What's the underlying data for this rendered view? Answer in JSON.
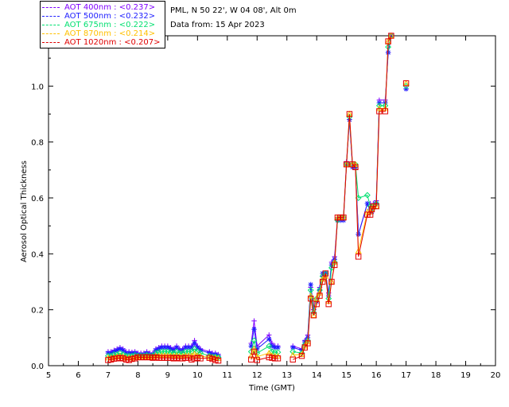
{
  "header": {
    "site": "PML, N 50 22', W 04 08', Alt 0m",
    "date": "Data from: 15 Apr 2023"
  },
  "legend": [
    {
      "label": "AOT  400nm : <0.237>",
      "color": "#7f00ff"
    },
    {
      "label": "AOT  500nm : <0.232>",
      "color": "#2020ff"
    },
    {
      "label": "AOT  675nm : <0.222>",
      "color": "#00e070"
    },
    {
      "label": "AOT  870nm : <0.214>",
      "color": "#ffc000"
    },
    {
      "label": "AOT 1020nm : <0.207>",
      "color": "#e00000"
    }
  ],
  "chart_data": {
    "type": "line",
    "title": "",
    "xlabel": "Time (GMT)",
    "ylabel": "Aerosol Optical Thickness",
    "xlim": [
      5,
      20
    ],
    "ylim": [
      0,
      1.18
    ],
    "xticks": [
      "5",
      "6",
      "7",
      "8",
      "9",
      "10",
      "11",
      "12",
      "13",
      "14",
      "15",
      "16",
      "17",
      "18",
      "19",
      "20"
    ],
    "yticks": [
      "0.0",
      "0.2",
      "0.4",
      "0.6",
      "0.8",
      "1.0"
    ],
    "grid": false,
    "series": [
      {
        "color": "#7f00ff",
        "marker": "plus",
        "x": [
          7.0,
          7.1,
          7.2,
          7.3,
          7.4,
          7.5,
          7.6,
          7.7,
          7.8,
          7.9,
          8.0,
          8.1,
          8.2,
          8.3,
          8.4,
          8.5,
          8.6,
          8.7,
          8.8,
          8.9,
          9.0,
          9.1,
          9.2,
          9.3,
          9.4,
          9.5,
          9.6,
          9.7,
          9.8,
          9.9,
          10.0,
          10.1,
          10.4,
          10.5,
          10.6,
          10.7,
          11.8,
          11.9,
          12.0,
          12.4,
          12.5,
          12.6,
          12.7,
          13.2,
          13.5,
          13.6,
          13.7,
          13.8,
          13.9,
          14.0,
          14.1,
          14.2,
          14.3,
          14.4,
          14.5,
          14.6,
          14.7,
          14.8,
          14.9,
          15.0,
          15.1,
          15.2,
          15.3,
          15.4,
          15.7,
          15.8,
          15.85,
          15.9,
          16.0,
          16.1,
          16.3,
          16.4,
          16.5,
          17.0
        ],
        "y": [
          0.05,
          0.05,
          0.055,
          0.06,
          0.065,
          0.06,
          0.05,
          0.05,
          0.048,
          0.05,
          0.045,
          0.045,
          0.045,
          0.05,
          0.045,
          0.045,
          0.06,
          0.065,
          0.07,
          0.07,
          0.07,
          0.065,
          0.06,
          0.07,
          0.06,
          0.06,
          0.07,
          0.07,
          0.07,
          0.09,
          0.07,
          0.06,
          0.05,
          0.045,
          0.045,
          0.04,
          0.08,
          0.16,
          0.07,
          0.11,
          0.08,
          0.07,
          0.07,
          0.07,
          0.06,
          0.09,
          0.11,
          0.28,
          0.2,
          0.24,
          0.28,
          0.32,
          0.33,
          0.26,
          0.37,
          0.39,
          0.53,
          0.53,
          0.53,
          0.73,
          0.88,
          0.72,
          0.71,
          0.47,
          0.58,
          0.58,
          0.55,
          0.58,
          0.59,
          0.95,
          0.95,
          1.12,
          1.18,
          0.99
        ]
      },
      {
        "color": "#2020ff",
        "marker": "star",
        "x": [
          7.0,
          7.1,
          7.2,
          7.3,
          7.4,
          7.5,
          7.6,
          7.7,
          7.8,
          7.9,
          8.0,
          8.1,
          8.2,
          8.3,
          8.4,
          8.5,
          8.6,
          8.7,
          8.8,
          8.9,
          9.0,
          9.1,
          9.2,
          9.3,
          9.4,
          9.5,
          9.6,
          9.7,
          9.8,
          9.9,
          10.0,
          10.1,
          10.4,
          10.5,
          10.6,
          10.7,
          11.8,
          11.9,
          12.0,
          12.4,
          12.5,
          12.6,
          12.7,
          13.2,
          13.5,
          13.6,
          13.7,
          13.8,
          13.9,
          14.0,
          14.1,
          14.2,
          14.3,
          14.4,
          14.5,
          14.6,
          14.7,
          14.8,
          14.9,
          15.0,
          15.1,
          15.2,
          15.3,
          15.4,
          15.7,
          15.8,
          15.85,
          15.9,
          16.0,
          16.1,
          16.3,
          16.4,
          16.5,
          17.0
        ],
        "y": [
          0.045,
          0.045,
          0.05,
          0.055,
          0.06,
          0.055,
          0.045,
          0.045,
          0.044,
          0.046,
          0.04,
          0.04,
          0.04,
          0.045,
          0.04,
          0.04,
          0.055,
          0.06,
          0.065,
          0.065,
          0.065,
          0.06,
          0.055,
          0.065,
          0.055,
          0.055,
          0.065,
          0.065,
          0.065,
          0.08,
          0.065,
          0.055,
          0.045,
          0.04,
          0.04,
          0.035,
          0.07,
          0.13,
          0.06,
          0.095,
          0.07,
          0.065,
          0.065,
          0.065,
          0.055,
          0.085,
          0.1,
          0.29,
          0.2,
          0.23,
          0.27,
          0.33,
          0.33,
          0.25,
          0.36,
          0.38,
          0.52,
          0.52,
          0.52,
          0.72,
          0.88,
          0.71,
          0.71,
          0.47,
          0.58,
          0.56,
          0.55,
          0.57,
          0.58,
          0.94,
          0.94,
          1.12,
          1.18,
          0.99
        ]
      },
      {
        "color": "#00e070",
        "marker": "diamond",
        "x": [
          7.0,
          7.1,
          7.2,
          7.3,
          7.4,
          7.5,
          7.6,
          7.7,
          7.8,
          7.9,
          8.0,
          8.1,
          8.2,
          8.3,
          8.4,
          8.5,
          8.6,
          8.7,
          8.8,
          8.9,
          9.0,
          9.1,
          9.2,
          9.3,
          9.4,
          9.5,
          9.6,
          9.7,
          9.8,
          9.9,
          10.0,
          10.1,
          10.4,
          10.5,
          10.6,
          10.7,
          11.8,
          11.9,
          12.0,
          12.4,
          12.5,
          12.6,
          12.7,
          13.2,
          13.5,
          13.6,
          13.7,
          13.8,
          13.9,
          14.0,
          14.1,
          14.2,
          14.3,
          14.4,
          14.5,
          14.6,
          14.7,
          14.8,
          14.9,
          15.0,
          15.1,
          15.2,
          15.3,
          15.4,
          15.7,
          15.8,
          15.85,
          15.9,
          16.0,
          16.1,
          16.3,
          16.4,
          16.5,
          17.0
        ],
        "y": [
          0.035,
          0.035,
          0.04,
          0.04,
          0.045,
          0.04,
          0.035,
          0.035,
          0.035,
          0.038,
          0.035,
          0.035,
          0.035,
          0.038,
          0.035,
          0.035,
          0.045,
          0.048,
          0.05,
          0.05,
          0.05,
          0.048,
          0.045,
          0.05,
          0.045,
          0.045,
          0.05,
          0.05,
          0.05,
          0.06,
          0.05,
          0.045,
          0.035,
          0.032,
          0.032,
          0.03,
          0.05,
          0.09,
          0.045,
          0.07,
          0.05,
          0.048,
          0.048,
          0.05,
          0.045,
          0.075,
          0.09,
          0.27,
          0.19,
          0.24,
          0.27,
          0.32,
          0.33,
          0.24,
          0.35,
          0.37,
          0.52,
          0.53,
          0.53,
          0.72,
          0.89,
          0.72,
          0.72,
          0.6,
          0.61,
          0.57,
          0.56,
          0.57,
          0.58,
          0.93,
          0.93,
          1.14,
          1.18,
          1.0
        ]
      },
      {
        "color": "#ffc000",
        "marker": "triangle",
        "x": [
          7.0,
          7.1,
          7.2,
          7.3,
          7.4,
          7.5,
          7.6,
          7.7,
          7.8,
          7.9,
          8.0,
          8.1,
          8.2,
          8.3,
          8.4,
          8.5,
          8.6,
          8.7,
          8.8,
          8.9,
          9.0,
          9.1,
          9.2,
          9.3,
          9.4,
          9.5,
          9.6,
          9.7,
          9.8,
          9.9,
          10.0,
          10.1,
          10.4,
          10.5,
          10.6,
          10.7,
          11.8,
          11.9,
          12.0,
          12.4,
          12.5,
          12.6,
          12.7,
          13.2,
          13.5,
          13.6,
          13.7,
          13.8,
          13.9,
          14.0,
          14.1,
          14.2,
          14.3,
          14.4,
          14.5,
          14.6,
          14.7,
          14.8,
          14.9,
          15.0,
          15.1,
          15.2,
          15.3,
          15.4,
          15.7,
          15.8,
          15.85,
          15.9,
          16.0,
          16.1,
          16.3,
          16.4,
          16.5,
          17.0
        ],
        "y": [
          0.028,
          0.028,
          0.03,
          0.032,
          0.034,
          0.032,
          0.028,
          0.028,
          0.028,
          0.03,
          0.03,
          0.03,
          0.03,
          0.032,
          0.03,
          0.03,
          0.035,
          0.035,
          0.036,
          0.036,
          0.036,
          0.035,
          0.034,
          0.036,
          0.034,
          0.034,
          0.036,
          0.036,
          0.036,
          0.042,
          0.036,
          0.034,
          0.03,
          0.028,
          0.028,
          0.026,
          0.035,
          0.06,
          0.032,
          0.045,
          0.036,
          0.034,
          0.034,
          0.038,
          0.04,
          0.07,
          0.085,
          0.25,
          0.18,
          0.24,
          0.26,
          0.31,
          0.32,
          0.23,
          0.3,
          0.37,
          0.53,
          0.53,
          0.53,
          0.72,
          0.9,
          0.72,
          0.72,
          0.41,
          0.55,
          0.55,
          0.56,
          0.57,
          0.57,
          0.92,
          0.92,
          1.16,
          1.19,
          1.01
        ]
      },
      {
        "color": "#e00000",
        "marker": "square",
        "x": [
          7.0,
          7.1,
          7.2,
          7.3,
          7.4,
          7.5,
          7.6,
          7.7,
          7.8,
          7.9,
          8.0,
          8.1,
          8.2,
          8.3,
          8.4,
          8.5,
          8.6,
          8.7,
          8.8,
          8.9,
          9.0,
          9.1,
          9.2,
          9.3,
          9.4,
          9.5,
          9.6,
          9.7,
          9.8,
          9.9,
          10.0,
          10.1,
          10.4,
          10.5,
          10.6,
          10.7,
          11.8,
          11.9,
          12.0,
          12.4,
          12.5,
          12.6,
          12.7,
          13.2,
          13.5,
          13.6,
          13.7,
          13.8,
          13.9,
          14.0,
          14.1,
          14.2,
          14.3,
          14.4,
          14.5,
          14.6,
          14.7,
          14.8,
          14.9,
          15.0,
          15.1,
          15.2,
          15.3,
          15.4,
          15.7,
          15.8,
          15.85,
          15.9,
          16.0,
          16.1,
          16.3,
          16.4,
          16.5,
          17.0
        ],
        "y": [
          0.02,
          0.022,
          0.025,
          0.026,
          0.028,
          0.026,
          0.022,
          0.02,
          0.024,
          0.026,
          0.03,
          0.03,
          0.03,
          0.03,
          0.03,
          0.028,
          0.03,
          0.028,
          0.028,
          0.028,
          0.028,
          0.028,
          0.026,
          0.028,
          0.026,
          0.026,
          0.028,
          0.028,
          0.022,
          0.026,
          0.028,
          0.026,
          0.028,
          0.024,
          0.02,
          0.018,
          0.022,
          0.05,
          0.02,
          0.03,
          0.028,
          0.026,
          0.026,
          0.022,
          0.035,
          0.065,
          0.08,
          0.24,
          0.18,
          0.22,
          0.25,
          0.3,
          0.33,
          0.22,
          0.3,
          0.36,
          0.53,
          0.53,
          0.53,
          0.72,
          0.9,
          0.72,
          0.71,
          0.39,
          0.54,
          0.54,
          0.56,
          0.57,
          0.57,
          0.91,
          0.91,
          1.16,
          1.19,
          1.01
        ]
      }
    ]
  }
}
